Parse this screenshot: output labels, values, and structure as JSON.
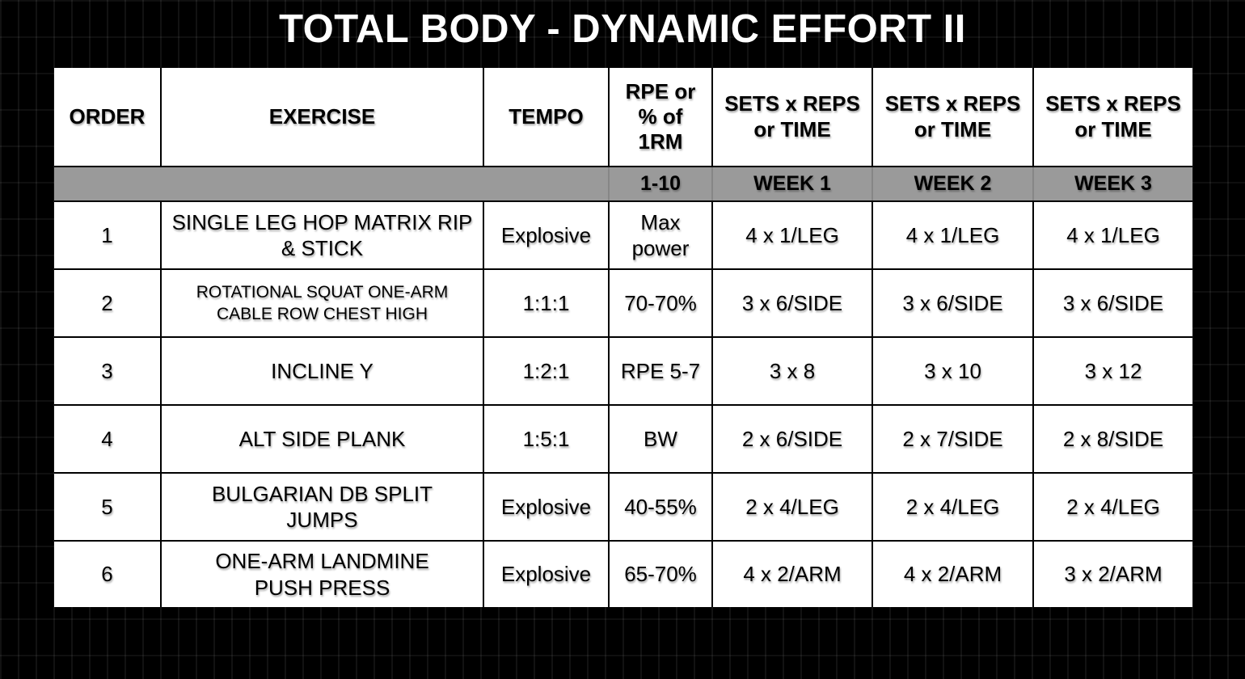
{
  "title": "TOTAL BODY - DYNAMIC EFFORT II",
  "colors": {
    "page_bg": "#000000",
    "table_bg": "#ffffff",
    "subheader_bg": "#9a9a9a",
    "border": "#000000",
    "title_text": "#ffffff",
    "body_text": "#000000"
  },
  "table": {
    "columns": [
      "ORDER",
      "EXERCISE",
      "TEMPO",
      "RPE or\n% of\n1RM",
      "SETS x REPS\nor TIME",
      "SETS x REPS\nor TIME",
      "SETS x REPS\nor TIME"
    ],
    "subheader": {
      "rpe_scale": "1-10",
      "weeks": [
        "WEEK 1",
        "WEEK 2",
        "WEEK 3"
      ]
    },
    "rows": [
      {
        "order": "1",
        "exercise": "SINGLE LEG HOP MATRIX RIP\n& STICK",
        "tempo": "Explosive",
        "rpe": "Max\npower",
        "week1": "4 x 1/LEG",
        "week2": "4 x 1/LEG",
        "week3": "4 x 1/LEG"
      },
      {
        "order": "2",
        "exercise": "ROTATIONAL SQUAT ONE-ARM\nCABLE ROW CHEST HIGH",
        "tempo": "1:1:1",
        "rpe": "70-70%",
        "week1": "3 x 6/SIDE",
        "week2": "3 x 6/SIDE",
        "week3": "3 x 6/SIDE"
      },
      {
        "order": "3",
        "exercise": "INCLINE Y",
        "tempo": "1:2:1",
        "rpe": "RPE 5-7",
        "week1": "3 x 8",
        "week2": "3 x 10",
        "week3": "3 x 12"
      },
      {
        "order": "4",
        "exercise": "ALT SIDE PLANK",
        "tempo": "1:5:1",
        "rpe": "BW",
        "week1": "2 x 6/SIDE",
        "week2": "2 x 7/SIDE",
        "week3": "2 x 8/SIDE"
      },
      {
        "order": "5",
        "exercise": "BULGARIAN  DB SPLIT\nJUMPS",
        "tempo": "Explosive",
        "rpe": "40-55%",
        "week1": "2 x 4/LEG",
        "week2": "2 x 4/LEG",
        "week3": "2 x 4/LEG"
      },
      {
        "order": "6",
        "exercise": "ONE-ARM LANDMINE\nPUSH PRESS",
        "tempo": "Explosive",
        "rpe": "65-70%",
        "week1": "4 x 2/ARM",
        "week2": "4 x 2/ARM",
        "week3": "3 x 2/ARM"
      }
    ]
  }
}
